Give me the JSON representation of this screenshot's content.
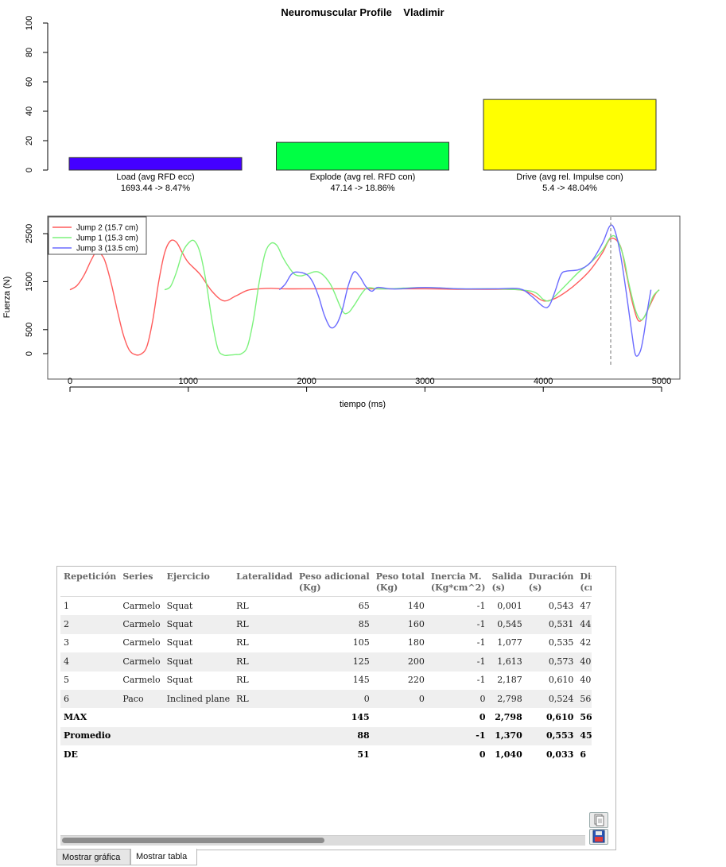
{
  "chart_data": [
    {
      "type": "bar",
      "title": "Neuromuscular Profile    Vladimir",
      "categories": [
        "Load (avg RFD ecc)",
        "Explode (avg rel. RFD con)",
        "Drive (avg rel. Impulse con)"
      ],
      "sublabels": [
        "1693.44 -> 8.47%",
        "47.14 -> 18.86%",
        "5.4 -> 48.04%"
      ],
      "values": [
        8.47,
        18.86,
        48.04
      ],
      "colors": [
        "#4400ff",
        "#00ff44",
        "#ffff00"
      ],
      "ylim": [
        0,
        100
      ],
      "yticks": [
        "0",
        "20",
        "40",
        "60",
        "80",
        "100"
      ],
      "xlabel": "",
      "ylabel": ""
    },
    {
      "type": "line",
      "xlabel": "tiempo (ms)",
      "ylabel": "Fuerza (N)",
      "xlim": [
        -200,
        5150
      ],
      "ylim": [
        -100,
        2800
      ],
      "xticks": [
        "0",
        "1000",
        "2000",
        "3000",
        "4000",
        "5000"
      ],
      "yticks": [
        "0",
        "500",
        "1500",
        "2500"
      ],
      "marker_x": 4570,
      "legend_position": "top-left",
      "series": [
        {
          "name": "Jump 2 (15.7 cm)",
          "color": "#ff5c5c",
          "points": [
            [
              0,
              1330
            ],
            [
              60,
              1420
            ],
            [
              120,
              1640
            ],
            [
              180,
              1950
            ],
            [
              230,
              2150
            ],
            [
              270,
              2050
            ],
            [
              300,
              1900
            ],
            [
              350,
              1450
            ],
            [
              400,
              900
            ],
            [
              450,
              400
            ],
            [
              500,
              80
            ],
            [
              550,
              -20
            ],
            [
              600,
              -10
            ],
            [
              650,
              150
            ],
            [
              700,
              700
            ],
            [
              750,
              1500
            ],
            [
              800,
              2100
            ],
            [
              850,
              2350
            ],
            [
              900,
              2320
            ],
            [
              950,
              2100
            ],
            [
              1000,
              1900
            ],
            [
              1100,
              1650
            ],
            [
              1200,
              1300
            ],
            [
              1300,
              1100
            ],
            [
              1400,
              1200
            ],
            [
              1500,
              1320
            ],
            [
              1600,
              1350
            ],
            [
              1700,
              1360
            ],
            [
              1800,
              1350
            ],
            [
              2000,
              1350
            ],
            [
              2500,
              1350
            ],
            [
              3000,
              1350
            ],
            [
              3300,
              1340
            ],
            [
              3600,
              1340
            ],
            [
              3800,
              1330
            ],
            [
              3900,
              1250
            ],
            [
              4000,
              1100
            ],
            [
              4100,
              1150
            ],
            [
              4200,
              1300
            ],
            [
              4300,
              1500
            ],
            [
              4400,
              1750
            ],
            [
              4500,
              2100
            ],
            [
              4570,
              2400
            ],
            [
              4650,
              2250
            ],
            [
              4700,
              1700
            ],
            [
              4750,
              1100
            ],
            [
              4800,
              700
            ],
            [
              4850,
              750
            ],
            [
              4900,
              1000
            ],
            [
              4950,
              1250
            ],
            [
              4980,
              1330
            ]
          ]
        },
        {
          "name": "Jump 1 (15.3 cm)",
          "color": "#7cf27c",
          "points": [
            [
              800,
              1330
            ],
            [
              850,
              1400
            ],
            [
              900,
              1700
            ],
            [
              950,
              2100
            ],
            [
              1000,
              2300
            ],
            [
              1050,
              2350
            ],
            [
              1100,
              2100
            ],
            [
              1150,
              1500
            ],
            [
              1200,
              700
            ],
            [
              1250,
              100
            ],
            [
              1300,
              -30
            ],
            [
              1350,
              -30
            ],
            [
              1400,
              -20
            ],
            [
              1450,
              0
            ],
            [
              1500,
              150
            ],
            [
              1550,
              700
            ],
            [
              1600,
              1500
            ],
            [
              1650,
              2100
            ],
            [
              1700,
              2300
            ],
            [
              1750,
              2250
            ],
            [
              1800,
              2000
            ],
            [
              1850,
              1800
            ],
            [
              1900,
              1650
            ],
            [
              1950,
              1620
            ],
            [
              2000,
              1650
            ],
            [
              2100,
              1700
            ],
            [
              2200,
              1450
            ],
            [
              2300,
              900
            ],
            [
              2350,
              850
            ],
            [
              2400,
              1000
            ],
            [
              2500,
              1350
            ],
            [
              2600,
              1350
            ],
            [
              2700,
              1350
            ],
            [
              3000,
              1380
            ],
            [
              3300,
              1350
            ],
            [
              3600,
              1350
            ],
            [
              3900,
              1300
            ],
            [
              4000,
              1130
            ],
            [
              4050,
              1100
            ],
            [
              4100,
              1200
            ],
            [
              4200,
              1450
            ],
            [
              4300,
              1700
            ],
            [
              4400,
              1900
            ],
            [
              4500,
              2150
            ],
            [
              4570,
              2430
            ],
            [
              4620,
              2400
            ],
            [
              4680,
              2000
            ],
            [
              4720,
              1500
            ],
            [
              4780,
              900
            ],
            [
              4830,
              700
            ],
            [
              4880,
              900
            ],
            [
              4930,
              1200
            ],
            [
              4980,
              1330
            ]
          ]
        },
        {
          "name": "Jump 3 (13.5 cm)",
          "color": "#6b6bff",
          "points": [
            [
              1770,
              1330
            ],
            [
              1820,
              1450
            ],
            [
              1870,
              1650
            ],
            [
              1920,
              1700
            ],
            [
              2000,
              1650
            ],
            [
              2050,
              1500
            ],
            [
              2100,
              1200
            ],
            [
              2150,
              800
            ],
            [
              2200,
              550
            ],
            [
              2250,
              600
            ],
            [
              2300,
              900
            ],
            [
              2350,
              1400
            ],
            [
              2400,
              1700
            ],
            [
              2450,
              1600
            ],
            [
              2500,
              1400
            ],
            [
              2550,
              1300
            ],
            [
              2600,
              1380
            ],
            [
              2700,
              1350
            ],
            [
              2800,
              1350
            ],
            [
              3000,
              1380
            ],
            [
              3300,
              1350
            ],
            [
              3600,
              1350
            ],
            [
              3800,
              1350
            ],
            [
              3900,
              1200
            ],
            [
              4000,
              980
            ],
            [
              4050,
              1000
            ],
            [
              4100,
              1300
            ],
            [
              4150,
              1650
            ],
            [
              4200,
              1720
            ],
            [
              4300,
              1750
            ],
            [
              4400,
              1900
            ],
            [
              4500,
              2300
            ],
            [
              4560,
              2650
            ],
            [
              4600,
              2600
            ],
            [
              4650,
              2100
            ],
            [
              4700,
              1300
            ],
            [
              4750,
              400
            ],
            [
              4780,
              -30
            ],
            [
              4820,
              50
            ],
            [
              4850,
              400
            ],
            [
              4880,
              900
            ],
            [
              4910,
              1330
            ]
          ]
        }
      ]
    }
  ],
  "table": {
    "headers": [
      {
        "l1": "Repetición",
        "l2": ""
      },
      {
        "l1": "Series",
        "l2": ""
      },
      {
        "l1": "Ejercicio",
        "l2": ""
      },
      {
        "l1": "Lateralidad",
        "l2": ""
      },
      {
        "l1": "Peso adicional",
        "l2": "(Kg)"
      },
      {
        "l1": "Peso total",
        "l2": "(Kg)"
      },
      {
        "l1": "Inercia M.",
        "l2": "(Kg*cm^2)"
      },
      {
        "l1": "Salida",
        "l2": "(s)"
      },
      {
        "l1": "Duración",
        "l2": "(s)"
      },
      {
        "l1": "Dista",
        "l2": "(cm)"
      }
    ],
    "rows": [
      [
        "1",
        "Carmelo",
        "Squat",
        "RL",
        "65",
        "140",
        "-1",
        "0,001",
        "0,543",
        "47"
      ],
      [
        "2",
        "Carmelo",
        "Squat",
        "RL",
        "85",
        "160",
        "-1",
        "0,545",
        "0,531",
        "44"
      ],
      [
        "3",
        "Carmelo",
        "Squat",
        "RL",
        "105",
        "180",
        "-1",
        "1,077",
        "0,535",
        "42"
      ],
      [
        "4",
        "Carmelo",
        "Squat",
        "RL",
        "125",
        "200",
        "-1",
        "1,613",
        "0,573",
        "40"
      ],
      [
        "5",
        "Carmelo",
        "Squat",
        "RL",
        "145",
        "220",
        "-1",
        "2,187",
        "0,610",
        "40"
      ],
      [
        "6",
        "Paco",
        "Inclined plane",
        "RL",
        "0",
        "0",
        "0",
        "2,798",
        "0,524",
        "56"
      ]
    ],
    "summary": [
      [
        "MAX",
        "",
        "",
        "",
        "145",
        "",
        "0",
        "2,798",
        "0,610",
        "56"
      ],
      [
        "Promedio",
        "",
        "",
        "",
        "88",
        "",
        "-1",
        "1,370",
        "0,553",
        "45"
      ],
      [
        "DE",
        "",
        "",
        "",
        "51",
        "",
        "0",
        "1,040",
        "0,033",
        "6"
      ]
    ]
  },
  "icons": {
    "copy": "copy-document-icon",
    "save": "save-floppy-icon"
  },
  "tabs": {
    "chart": "Mostrar gráfica",
    "table": "Mostrar tabla"
  }
}
